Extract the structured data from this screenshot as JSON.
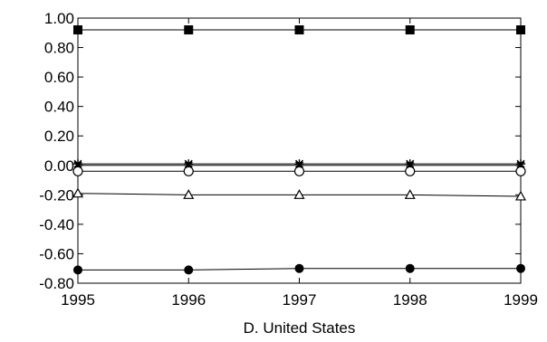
{
  "chart_data": {
    "type": "line",
    "title": "",
    "caption": "D. United States",
    "xlabel": "",
    "ylabel": "",
    "x": [
      1995,
      1996,
      1997,
      1998,
      1999
    ],
    "x_tick_labels": [
      "1995",
      "1996",
      "1997",
      "1998",
      "1999"
    ],
    "ylim": [
      -0.8,
      1.0
    ],
    "y_ticks": [
      1.0,
      0.8,
      0.6,
      0.4,
      0.2,
      0.0,
      -0.2,
      -0.4,
      -0.6,
      -0.8
    ],
    "y_tick_labels": [
      "1.00",
      "0.80",
      "0.60",
      "0.40",
      "0.20",
      "0.00",
      "-0.20",
      "-0.40",
      "-0.60",
      "-0.80"
    ],
    "grid": false,
    "series": [
      {
        "marker": "filled-square",
        "values": [
          0.92,
          0.92,
          0.92,
          0.92,
          0.92
        ]
      },
      {
        "marker": "star",
        "values": [
          0.01,
          0.01,
          0.01,
          0.01,
          0.01
        ]
      },
      {
        "marker": "x-cross",
        "values": [
          0.0,
          0.0,
          0.0,
          0.0,
          0.0
        ]
      },
      {
        "marker": "open-circle",
        "values": [
          -0.04,
          -0.04,
          -0.04,
          -0.04,
          -0.04
        ]
      },
      {
        "marker": "open-triangle",
        "values": [
          -0.19,
          -0.2,
          -0.2,
          -0.2,
          -0.21
        ]
      },
      {
        "marker": "filled-circle",
        "values": [
          -0.71,
          -0.71,
          -0.7,
          -0.7,
          -0.7
        ]
      }
    ],
    "colors": {
      "line": "#000000",
      "axis": "#000000",
      "background": "#ffffff"
    }
  }
}
